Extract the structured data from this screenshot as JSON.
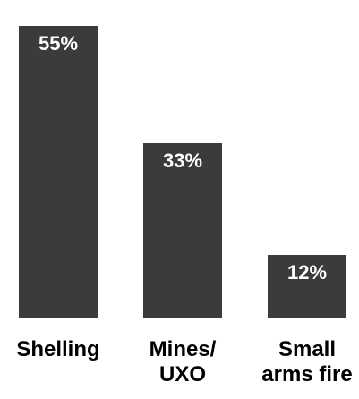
{
  "chart_data": {
    "type": "bar",
    "categories": [
      "Shelling",
      "Mines/\nUXO",
      "Small\narms fire"
    ],
    "values": [
      55,
      33,
      12
    ],
    "data_labels": [
      "55%",
      "33%",
      "12%"
    ],
    "title": "",
    "xlabel": "",
    "ylabel": "",
    "ylim": [
      0,
      55
    ],
    "grid": false,
    "legend": "none",
    "bar_color": "#3c3b3b",
    "label_color": "#ffffff"
  }
}
